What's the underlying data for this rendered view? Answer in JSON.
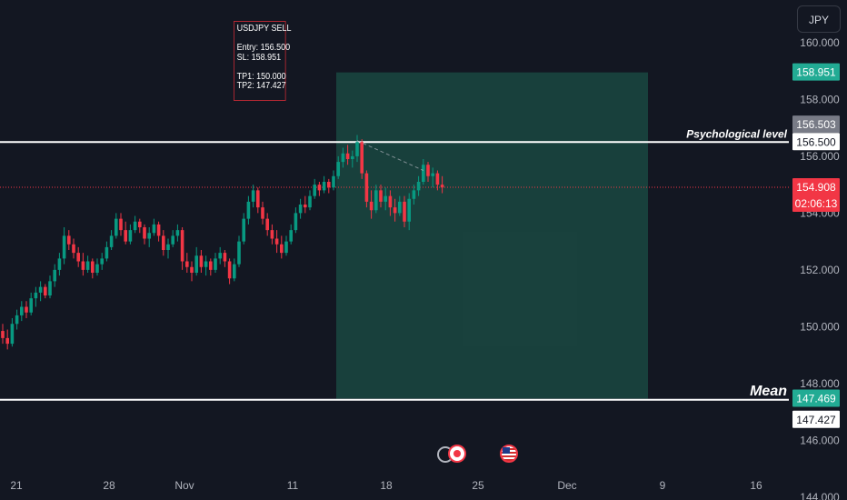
{
  "chart_data": {
    "type": "candlestick",
    "symbol_currency": "JPY",
    "y_ticks": [
      160.0,
      158.0,
      156.0,
      154.0,
      152.0,
      150.0,
      148.0,
      146.0,
      144.0
    ],
    "y_tick_labels": [
      "160.000",
      "158.000",
      "156.000",
      "154.000",
      "152.000",
      "150.000",
      "148.000",
      "146.000",
      "144.000"
    ],
    "ylim": [
      143.9,
      161.5
    ],
    "x_tick_labels": [
      "21",
      "28",
      "Nov",
      "11",
      "18",
      "25",
      "Dec",
      "9",
      "16"
    ],
    "horizontal_lines": [
      {
        "label": "Psychological level",
        "value": 156.5
      },
      {
        "label": "Mean",
        "value": 147.427
      }
    ],
    "price_labels": [
      {
        "text": "158.951",
        "value": 158.951,
        "kind": "target"
      },
      {
        "text": "156.503",
        "value": 156.503,
        "kind": "grey"
      },
      {
        "text": "156.500",
        "value": 156.5,
        "kind": "white"
      },
      {
        "text": "154.908",
        "value": 154.908,
        "kind": "last"
      },
      {
        "text": "02:06:13",
        "value": 154.908,
        "kind": "countdown"
      },
      {
        "text": "147.469",
        "value": 147.469,
        "kind": "target"
      },
      {
        "text": "147.427",
        "value": 147.427,
        "kind": "white"
      }
    ],
    "last_price": 154.908,
    "position_zone": {
      "top": 158.951,
      "bottom": 147.469
    },
    "candles": [
      [
        149.85,
        150.1,
        149.4,
        149.6
      ],
      [
        149.6,
        149.9,
        149.2,
        149.4
      ],
      [
        149.4,
        150.3,
        149.3,
        150.1
      ],
      [
        150.1,
        150.6,
        149.9,
        150.4
      ],
      [
        150.4,
        150.9,
        150.2,
        150.7
      ],
      [
        150.7,
        150.9,
        150.3,
        150.5
      ],
      [
        150.5,
        151.2,
        150.4,
        151.0
      ],
      [
        151.0,
        151.4,
        150.7,
        151.2
      ],
      [
        151.2,
        151.6,
        150.9,
        151.4
      ],
      [
        151.4,
        151.5,
        151.0,
        151.1
      ],
      [
        151.1,
        151.8,
        151.0,
        151.6
      ],
      [
        151.6,
        152.2,
        151.4,
        152.0
      ],
      [
        152.0,
        152.6,
        151.8,
        152.4
      ],
      [
        152.4,
        153.5,
        152.2,
        153.2
      ],
      [
        153.2,
        153.4,
        152.7,
        152.9
      ],
      [
        152.9,
        153.1,
        152.4,
        152.6
      ],
      [
        152.6,
        152.8,
        152.1,
        152.3
      ],
      [
        152.3,
        152.6,
        151.8,
        152.0
      ],
      [
        152.0,
        152.5,
        151.9,
        152.3
      ],
      [
        152.3,
        152.4,
        151.7,
        151.9
      ],
      [
        151.9,
        152.4,
        151.8,
        152.2
      ],
      [
        152.2,
        152.6,
        152.0,
        152.4
      ],
      [
        152.4,
        153.0,
        152.3,
        152.8
      ],
      [
        152.8,
        153.4,
        152.7,
        153.2
      ],
      [
        153.2,
        154.0,
        153.1,
        153.8
      ],
      [
        153.8,
        154.0,
        153.2,
        153.4
      ],
      [
        153.4,
        153.7,
        152.9,
        153.0
      ],
      [
        153.0,
        153.6,
        152.9,
        153.4
      ],
      [
        153.4,
        153.9,
        153.3,
        153.7
      ],
      [
        153.7,
        153.8,
        153.3,
        153.5
      ],
      [
        153.5,
        153.6,
        152.9,
        153.1
      ],
      [
        153.1,
        153.5,
        152.8,
        153.3
      ],
      [
        153.3,
        153.8,
        153.2,
        153.6
      ],
      [
        153.6,
        153.7,
        153.0,
        153.2
      ],
      [
        153.2,
        153.4,
        152.5,
        152.7
      ],
      [
        152.7,
        153.1,
        152.4,
        152.9
      ],
      [
        152.9,
        153.4,
        152.8,
        153.2
      ],
      [
        153.2,
        153.6,
        153.0,
        153.4
      ],
      [
        153.4,
        153.5,
        152.0,
        152.3
      ],
      [
        152.3,
        152.6,
        151.9,
        152.1
      ],
      [
        152.1,
        152.3,
        151.6,
        151.9
      ],
      [
        151.9,
        152.8,
        151.8,
        152.5
      ],
      [
        152.5,
        152.7,
        151.9,
        152.1
      ],
      [
        152.1,
        152.5,
        151.8,
        152.3
      ],
      [
        152.3,
        152.4,
        151.8,
        152.0
      ],
      [
        152.0,
        152.6,
        151.9,
        152.4
      ],
      [
        152.4,
        152.8,
        152.2,
        152.6
      ],
      [
        152.6,
        152.7,
        152.1,
        152.3
      ],
      [
        152.3,
        152.4,
        151.5,
        151.7
      ],
      [
        151.7,
        152.4,
        151.6,
        152.2
      ],
      [
        152.2,
        153.2,
        152.1,
        153.0
      ],
      [
        153.0,
        154.0,
        152.9,
        153.8
      ],
      [
        153.8,
        154.6,
        153.6,
        154.4
      ],
      [
        154.4,
        155.0,
        154.2,
        154.8
      ],
      [
        154.8,
        154.9,
        154.0,
        154.2
      ],
      [
        154.2,
        154.4,
        153.6,
        153.8
      ],
      [
        153.8,
        154.0,
        153.2,
        153.4
      ],
      [
        153.4,
        153.6,
        152.9,
        153.1
      ],
      [
        153.1,
        153.4,
        152.6,
        152.9
      ],
      [
        152.9,
        153.2,
        152.4,
        152.6
      ],
      [
        152.6,
        153.2,
        152.5,
        153.0
      ],
      [
        153.0,
        153.6,
        152.9,
        153.4
      ],
      [
        153.4,
        154.2,
        153.3,
        154.0
      ],
      [
        154.0,
        154.5,
        153.8,
        154.3
      ],
      [
        154.3,
        154.6,
        154.0,
        154.2
      ],
      [
        154.2,
        154.8,
        154.1,
        154.6
      ],
      [
        154.6,
        155.2,
        154.5,
        155.0
      ],
      [
        155.0,
        155.1,
        154.6,
        154.8
      ],
      [
        154.8,
        155.3,
        154.7,
        155.1
      ],
      [
        155.1,
        155.2,
        154.7,
        154.9
      ],
      [
        154.9,
        155.5,
        154.8,
        155.3
      ],
      [
        155.3,
        156.0,
        155.2,
        155.8
      ],
      [
        155.8,
        156.3,
        155.6,
        156.1
      ],
      [
        156.1,
        156.4,
        155.7,
        155.9
      ],
      [
        155.9,
        156.2,
        155.6,
        156.0
      ],
      [
        156.0,
        156.75,
        155.8,
        156.5
      ],
      [
        156.5,
        156.6,
        155.2,
        155.4
      ],
      [
        155.4,
        155.5,
        154.2,
        154.4
      ],
      [
        154.4,
        154.8,
        153.8,
        154.1
      ],
      [
        154.1,
        155.0,
        154.0,
        154.8
      ],
      [
        154.8,
        155.0,
        154.2,
        154.4
      ],
      [
        154.4,
        154.9,
        154.1,
        154.6
      ],
      [
        154.6,
        154.8,
        153.9,
        154.2
      ],
      [
        154.2,
        154.5,
        153.7,
        154.0
      ],
      [
        154.0,
        154.6,
        153.9,
        154.4
      ],
      [
        154.4,
        154.6,
        153.5,
        153.7
      ],
      [
        153.7,
        154.7,
        153.4,
        154.5
      ],
      [
        154.5,
        155.0,
        154.3,
        154.8
      ],
      [
        154.8,
        155.3,
        154.6,
        155.1
      ],
      [
        155.1,
        155.9,
        155.0,
        155.7
      ],
      [
        155.7,
        155.8,
        155.1,
        155.3
      ],
      [
        155.3,
        155.6,
        154.9,
        155.4
      ],
      [
        155.4,
        155.5,
        154.8,
        155.0
      ],
      [
        155.0,
        155.3,
        154.7,
        154.9
      ]
    ]
  },
  "note": {
    "text": "USDJPY SELL\n\nEntry: 156.500\nSL: 158.951\n\nTP1: 150.000\nTP2: 147.427"
  },
  "currency_button": "JPY",
  "colors": {
    "background": "#131722",
    "up": "#089981",
    "down": "#f23645",
    "zone": "#1b4f46",
    "target_label": "#22ab94",
    "last_label": "#f23645",
    "grey_label": "#787b86"
  }
}
